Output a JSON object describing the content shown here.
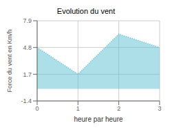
{
  "chart_data": {
    "type": "area",
    "title": "Evolution du vent",
    "xlabel": "heure par heure",
    "ylabel": "Force du vent en Km/h",
    "x": [
      0,
      1,
      2,
      3
    ],
    "values": [
      4.8,
      1.7,
      6.35,
      4.8
    ],
    "xlim": [
      0,
      3
    ],
    "xticks": [
      0,
      1,
      2,
      3
    ],
    "ylim": [
      -1.4,
      7.9
    ],
    "yticks": [
      -1.4,
      1.7,
      4.8,
      7.9
    ],
    "color": "#5bbfd4",
    "line_style": "dotted",
    "grid": true
  }
}
